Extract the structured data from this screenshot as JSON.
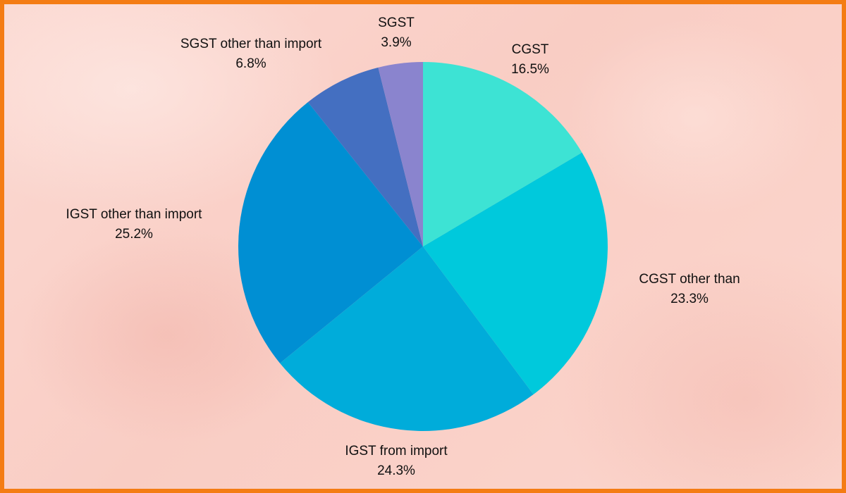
{
  "chart_data": {
    "type": "pie",
    "categories": [
      "CGST",
      "CGST other than",
      "IGST from import",
      "IGST other than import",
      "SGST other than import",
      "SGST"
    ],
    "values": [
      16.5,
      23.3,
      24.3,
      25.2,
      6.8,
      3.9
    ],
    "value_labels": [
      "16.5%",
      "23.3%",
      "24.3%",
      "25.2%",
      "6.8%",
      "3.9%"
    ],
    "colors": [
      "#3de3d4",
      "#00c9dc",
      "#00acda",
      "#008fd3",
      "#446fc1",
      "#8a84ce"
    ],
    "start": "top",
    "direction": "clockwise",
    "title": "",
    "legend": "none"
  },
  "theme": {
    "frame_border_color": "#f47c14",
    "background_color": "#fbd9d2"
  }
}
